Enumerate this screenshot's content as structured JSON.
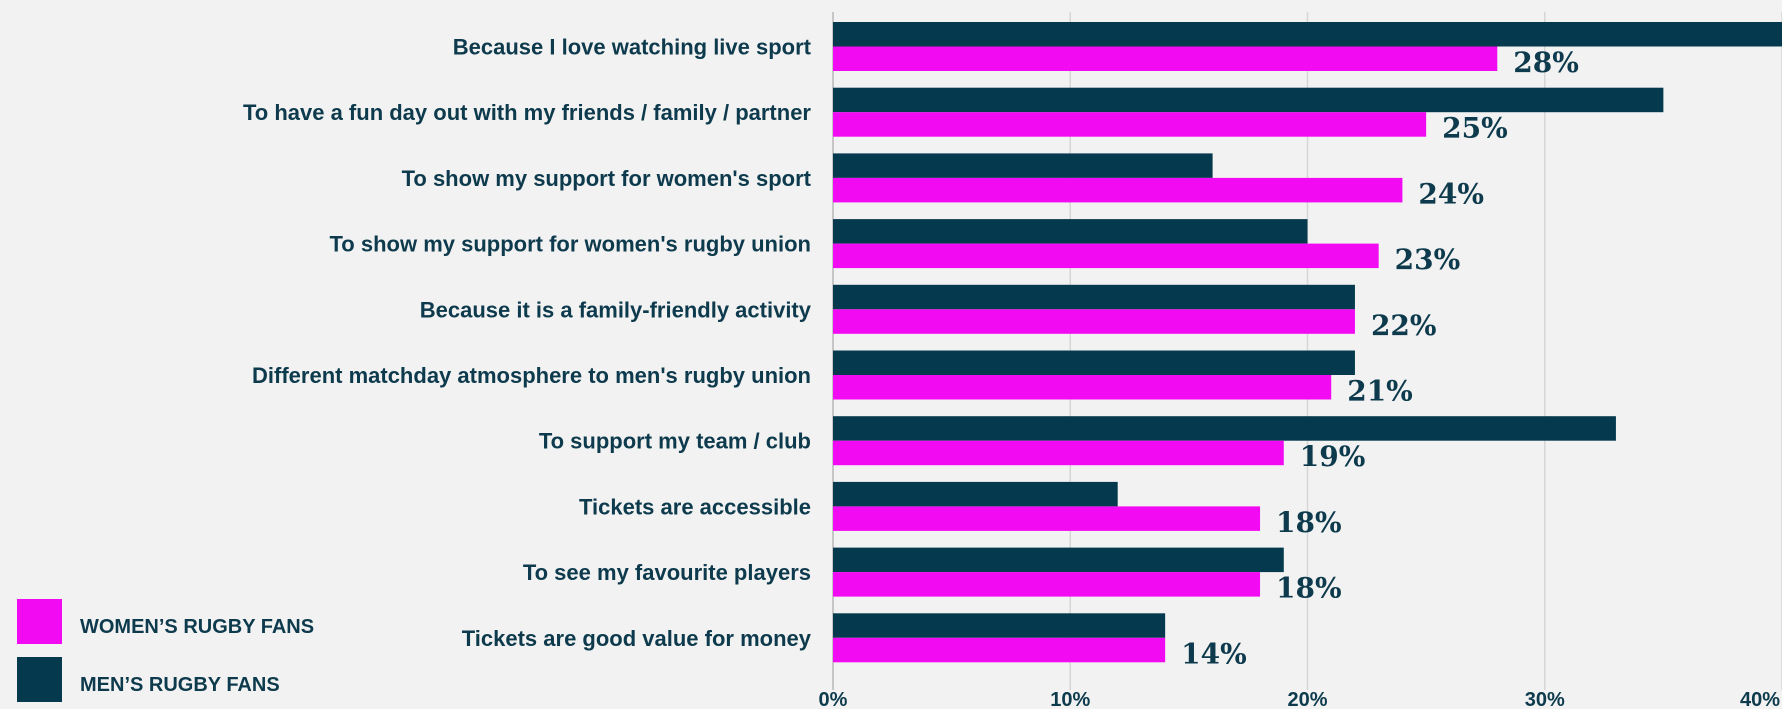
{
  "chart_data": {
    "type": "bar",
    "orientation": "horizontal",
    "categories": [
      "Because I love watching live sport",
      "To have a fun day out with my friends / family / partner",
      "To show my support for women's sport",
      "To show my support for women's rugby union",
      "Because it is a family-friendly activity",
      "Different matchday atmosphere to men's rugby union",
      "To support my team / club",
      "Tickets are accessible",
      "To see my favourite players",
      "Tickets are good value for money"
    ],
    "series": [
      {
        "name": "MEN’S RUGBY FANS",
        "color": "#053a4e",
        "values": [
          42,
          35,
          16,
          20,
          22,
          22,
          33,
          12,
          19,
          14
        ]
      },
      {
        "name": "WOMEN’S RUGBY FANS",
        "color": "#f20af2",
        "values": [
          28,
          25,
          24,
          23,
          22,
          21,
          19,
          18,
          18,
          14
        ]
      }
    ],
    "data_labels": [
      "28%",
      "25%",
      "24%",
      "23%",
      "22%",
      "21%",
      "19%",
      "18%",
      "18%",
      "14%"
    ],
    "xlim": [
      0,
      40
    ],
    "x_ticks": [
      "0%",
      "10%",
      "20%",
      "30%",
      "40%"
    ],
    "grid": true,
    "legend_placement": "bottom-left"
  }
}
